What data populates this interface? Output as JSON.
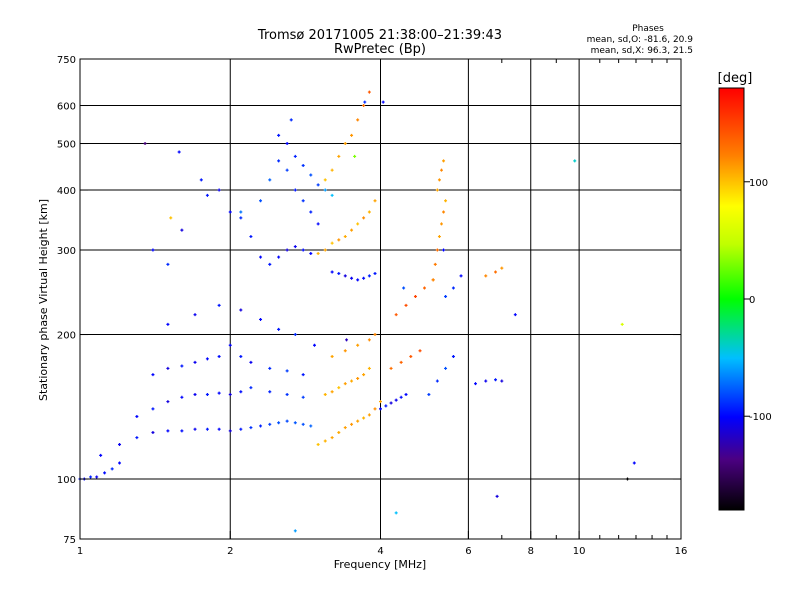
{
  "header": {
    "title": "Tromsø 20171005 21:38:00–21:39:43",
    "subtitle": "RwPretec (Bp)",
    "stats_heading": "Phases",
    "stats_o": "mean, sd,O: -81.6, 20.9",
    "stats_x": "mean, sd,X:  96.3, 21.5"
  },
  "chart_data": {
    "type": "scatter",
    "xlabel": "Frequency [MHz]",
    "ylabel": "Stationary phase Virtual Height [km]",
    "xscale": "log",
    "yscale": "log",
    "xlim": [
      1,
      16
    ],
    "ylim": [
      75,
      750
    ],
    "x_ticks": [
      1,
      2,
      4,
      6,
      8,
      10,
      16
    ],
    "y_ticks": [
      75,
      100,
      200,
      300,
      400,
      500,
      600,
      750
    ],
    "x_grid": [
      2,
      4,
      6,
      8,
      10
    ],
    "y_grid": [
      100,
      200,
      300,
      400,
      500,
      600
    ],
    "colorbar": {
      "label": "[deg]",
      "range": [
        -180,
        180
      ],
      "ticks": [
        100,
        0,
        -100
      ]
    },
    "series": [
      {
        "x": [
          1.0,
          1.02,
          1.05,
          1.08,
          1.12,
          1.16,
          1.2
        ],
        "y": [
          100,
          100,
          101,
          101,
          103,
          105,
          108
        ],
        "phase": [
          -95,
          -100,
          -92,
          -105,
          -98,
          -90,
          -100
        ]
      },
      {
        "x": [
          1.1,
          1.2,
          1.3,
          1.4,
          1.5,
          1.6,
          1.7,
          1.8,
          1.9,
          2.0,
          2.1,
          2.2,
          2.3,
          2.4,
          2.5,
          2.6,
          2.7,
          2.8,
          2.9
        ],
        "y": [
          112,
          118,
          122,
          125,
          126,
          126,
          127,
          127,
          127,
          126,
          127,
          128,
          129,
          130,
          131,
          132,
          131,
          130,
          129
        ],
        "phase": [
          -100,
          -105,
          -95,
          -110,
          -100,
          -98,
          -105,
          -95,
          -100,
          -110,
          -95,
          -88,
          -92,
          -85,
          -80,
          -82,
          -78,
          -80,
          -75
        ]
      },
      {
        "x": [
          1.3,
          1.4,
          1.5,
          1.6,
          1.7,
          1.8,
          1.9,
          2.0,
          2.1,
          2.2,
          2.4,
          2.6,
          2.8
        ],
        "y": [
          135,
          140,
          145,
          148,
          150,
          150,
          151,
          150,
          152,
          155,
          152,
          150,
          148
        ],
        "phase": [
          -100,
          -95,
          -110,
          -100,
          -105,
          -95,
          -100,
          -110,
          -98,
          -90,
          -92,
          -88,
          -85
        ]
      },
      {
        "x": [
          1.4,
          1.5,
          1.6,
          1.7,
          1.8,
          1.9,
          2.0,
          2.1,
          2.2,
          2.4,
          2.6,
          2.8,
          2.95
        ],
        "y": [
          165,
          170,
          172,
          175,
          178,
          180,
          190,
          180,
          175,
          170,
          168,
          165,
          190
        ],
        "phase": [
          -100,
          -110,
          -95,
          -105,
          -100,
          -98,
          -100,
          -95,
          -105,
          -90,
          -85,
          -95,
          -100
        ]
      },
      {
        "x": [
          1.5,
          1.7,
          1.9,
          2.1,
          2.3,
          2.5,
          2.7
        ],
        "y": [
          210,
          220,
          230,
          225,
          215,
          205,
          200
        ],
        "phase": [
          -100,
          -105,
          -95,
          -110,
          -100,
          -95,
          -90
        ]
      },
      {
        "x": [
          1.4,
          1.5,
          1.6,
          1.8,
          1.9,
          2.0,
          2.1,
          2.2,
          2.3,
          2.4,
          2.5,
          2.6,
          2.7,
          2.8,
          2.9
        ],
        "y": [
          300,
          280,
          330,
          390,
          400,
          360,
          350,
          320,
          290,
          280,
          290,
          300,
          305,
          300,
          295
        ],
        "phase": [
          -100,
          -90,
          -110,
          -95,
          -105,
          -100,
          -90,
          -95,
          -100,
          -95,
          -100,
          -110,
          -105,
          -98,
          -100
        ]
      },
      {
        "x": [
          2.1,
          2.3,
          2.4,
          2.5,
          2.6,
          2.7,
          2.8,
          2.9,
          3.0
        ],
        "y": [
          360,
          380,
          420,
          460,
          440,
          400,
          380,
          360,
          340
        ],
        "phase": [
          -70,
          -80,
          -75,
          -90,
          -85,
          -95,
          -88,
          -92,
          -100
        ]
      },
      {
        "x": [
          2.5,
          2.6,
          2.7,
          2.8,
          2.9,
          3.0,
          3.1,
          3.2
        ],
        "y": [
          520,
          500,
          470,
          450,
          430,
          410,
          400,
          390
        ],
        "phase": [
          -95,
          -100,
          -92,
          -88,
          -80,
          -85,
          -60,
          -50
        ]
      },
      {
        "x": [
          3.0,
          3.1,
          3.2,
          3.3,
          3.4,
          3.5,
          3.6,
          3.7,
          3.8,
          3.9
        ],
        "y": [
          295,
          300,
          310,
          315,
          320,
          330,
          340,
          350,
          360,
          380
        ],
        "phase": [
          105,
          110,
          100,
          115,
          108,
          112,
          100,
          118,
          105,
          110
        ]
      },
      {
        "x": [
          3.1,
          3.2,
          3.3,
          3.4,
          3.5,
          3.6,
          3.7,
          3.8
        ],
        "y": [
          420,
          440,
          470,
          500,
          520,
          560,
          600,
          640
        ],
        "phase": [
          100,
          105,
          110,
          112,
          115,
          120,
          130,
          140
        ]
      },
      {
        "x": [
          3.2,
          3.3,
          3.4,
          3.5,
          3.6,
          3.7,
          3.8,
          3.9
        ],
        "y": [
          270,
          268,
          265,
          262,
          260,
          262,
          265,
          268
        ],
        "phase": [
          -100,
          -95,
          -110,
          -105,
          -100,
          -98,
          -92,
          -95
        ]
      },
      {
        "x": [
          3.0,
          3.1,
          3.2,
          3.3,
          3.4,
          3.5,
          3.6,
          3.7,
          3.8,
          3.9,
          4.0
        ],
        "y": [
          118,
          120,
          122,
          125,
          128,
          130,
          132,
          134,
          136,
          140,
          145
        ],
        "phase": [
          100,
          105,
          110,
          108,
          112,
          115,
          110,
          105,
          112,
          118,
          110
        ]
      },
      {
        "x": [
          3.1,
          3.2,
          3.3,
          3.4,
          3.5,
          3.6,
          3.7,
          3.8
        ],
        "y": [
          150,
          152,
          155,
          158,
          160,
          162,
          165,
          170
        ],
        "phase": [
          105,
          110,
          100,
          112,
          108,
          115,
          110,
          105
        ]
      },
      {
        "x": [
          3.2,
          3.4,
          3.6,
          3.8,
          3.9
        ],
        "y": [
          180,
          185,
          190,
          195,
          200
        ],
        "phase": [
          110,
          115,
          112,
          118,
          120
        ]
      },
      {
        "x": [
          4.0,
          4.1,
          4.2,
          4.3,
          4.4,
          4.5
        ],
        "y": [
          140,
          142,
          144,
          146,
          148,
          150
        ],
        "phase": [
          -100,
          -95,
          -110,
          -105,
          -98,
          -100
        ]
      },
      {
        "x": [
          4.2,
          4.4,
          4.6,
          4.8
        ],
        "y": [
          170,
          175,
          180,
          185
        ],
        "phase": [
          130,
          135,
          140,
          145
        ]
      },
      {
        "x": [
          4.3,
          4.5,
          4.7,
          4.9,
          5.1
        ],
        "y": [
          220,
          230,
          240,
          250,
          260
        ],
        "phase": [
          140,
          145,
          150,
          135,
          130
        ]
      },
      {
        "x": [
          5.1,
          5.15,
          5.2,
          5.25,
          5.3,
          5.35,
          5.4
        ],
        "y": [
          260,
          280,
          300,
          320,
          340,
          360,
          380
        ],
        "phase": [
          120,
          125,
          130,
          110,
          115,
          120,
          105
        ]
      },
      {
        "x": [
          5.2,
          5.25,
          5.3,
          5.35
        ],
        "y": [
          400,
          420,
          440,
          460
        ],
        "phase": [
          110,
          115,
          120,
          112
        ]
      },
      {
        "x": [
          5.0,
          5.2,
          5.4,
          5.6
        ],
        "y": [
          150,
          160,
          170,
          180
        ],
        "phase": [
          -85,
          -90,
          -80,
          -95
        ]
      },
      {
        "x": [
          5.4,
          5.6,
          5.8
        ],
        "y": [
          240,
          250,
          265
        ],
        "phase": [
          -85,
          -90,
          -100
        ]
      },
      {
        "x": [
          6.2,
          6.5,
          6.8,
          7.0
        ],
        "y": [
          158,
          160,
          161,
          160
        ],
        "phase": [
          -100,
          -105,
          -95,
          -110
        ]
      },
      {
        "x": [
          6.5,
          6.8,
          7.0
        ],
        "y": [
          265,
          270,
          275
        ],
        "phase": [
          120,
          130,
          115
        ]
      },
      {
        "x": [
          1.35,
          1.52,
          1.58,
          1.75,
          2.65,
          2.7,
          3.42,
          3.55,
          3.72,
          4.05,
          4.3,
          4.45,
          5.35,
          6.85,
          7.45,
          9.8,
          12.2,
          12.5,
          12.9
        ],
        "y": [
          500,
          350,
          480,
          420,
          560,
          78,
          195,
          470,
          610,
          610,
          85,
          250,
          300,
          92,
          220,
          460,
          210,
          100,
          108
        ],
        "phase": [
          -140,
          100,
          -100,
          -95,
          -90,
          -60,
          -120,
          30,
          -90,
          -100,
          -50,
          -80,
          -100,
          -110,
          -100,
          -40,
          60,
          -180,
          -100
        ]
      }
    ]
  }
}
